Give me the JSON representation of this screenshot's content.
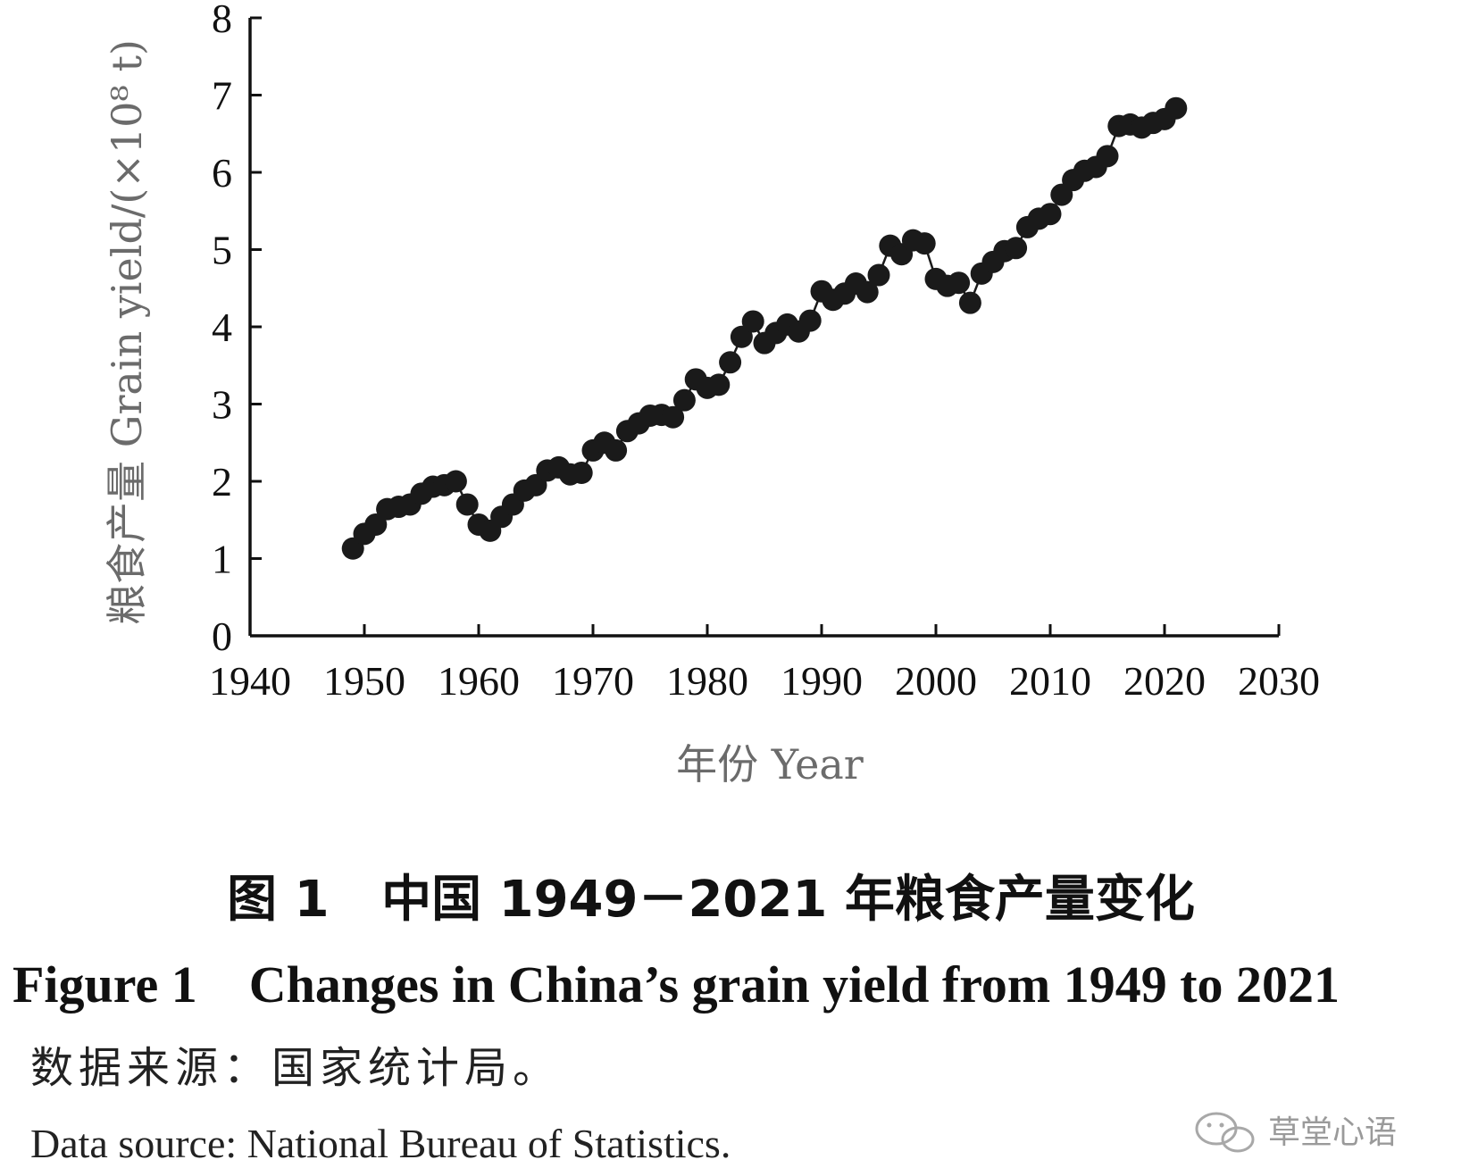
{
  "chart_data": {
    "type": "line",
    "title": "",
    "xlabel": "年份 Year",
    "ylabel": "粮食产量 Grain yield/(×10⁸ t)",
    "xlim": [
      1940,
      2030
    ],
    "ylim": [
      0,
      8
    ],
    "x_ticks": [
      "1940",
      "1950",
      "1960",
      "1970",
      "1980",
      "1990",
      "2000",
      "2010",
      "2020",
      "2030"
    ],
    "y_ticks": [
      "0",
      "1",
      "2",
      "3",
      "4",
      "5",
      "6",
      "7",
      "8"
    ],
    "grid": false,
    "legend": "none",
    "marker": "filled-circle",
    "series": [
      {
        "x": [
          1949,
          1950,
          1951,
          1952,
          1953,
          1954,
          1955,
          1956,
          1957,
          1958,
          1959,
          1960,
          1961,
          1962,
          1963,
          1964,
          1965,
          1966,
          1967,
          1968,
          1969,
          1970,
          1971,
          1972,
          1973,
          1974,
          1975,
          1976,
          1977,
          1978,
          1979,
          1980,
          1981,
          1982,
          1983,
          1984,
          1985,
          1986,
          1987,
          1988,
          1989,
          1990,
          1991,
          1992,
          1993,
          1994,
          1995,
          1996,
          1997,
          1998,
          1999,
          2000,
          2001,
          2002,
          2003,
          2004,
          2005,
          2006,
          2007,
          2008,
          2009,
          2010,
          2011,
          2012,
          2013,
          2014,
          2015,
          2016,
          2017,
          2018,
          2019,
          2020,
          2021
        ],
        "values": [
          1.13,
          1.32,
          1.44,
          1.64,
          1.67,
          1.7,
          1.84,
          1.93,
          1.95,
          2.0,
          1.7,
          1.44,
          1.36,
          1.54,
          1.7,
          1.88,
          1.95,
          2.14,
          2.18,
          2.09,
          2.11,
          2.4,
          2.5,
          2.4,
          2.65,
          2.75,
          2.85,
          2.86,
          2.83,
          3.05,
          3.32,
          3.21,
          3.25,
          3.54,
          3.87,
          4.07,
          3.79,
          3.92,
          4.03,
          3.94,
          4.08,
          4.46,
          4.35,
          4.43,
          4.56,
          4.45,
          4.67,
          5.05,
          4.94,
          5.12,
          5.08,
          4.62,
          4.53,
          4.57,
          4.31,
          4.69,
          4.84,
          4.98,
          5.02,
          5.29,
          5.4,
          5.46,
          5.71,
          5.9,
          6.02,
          6.07,
          6.21,
          6.6,
          6.62,
          6.58,
          6.64,
          6.69,
          6.83
        ]
      }
    ],
    "colors": {
      "marker": "#1a1a1a",
      "axis": "#111111",
      "axis_title": "#6b6b6b"
    }
  },
  "caption": {
    "cn": "图 1   中国 1949－2021 年粮食产量变化",
    "en": "Figure 1    Changes in China’s grain yield from 1949 to 2021"
  },
  "source": {
    "cn": "数据来源：国家统计局。",
    "en": "Data source: National Bureau of Statistics."
  },
  "watermark": {
    "text": "草堂心语",
    "icon": "wechat-icon"
  }
}
